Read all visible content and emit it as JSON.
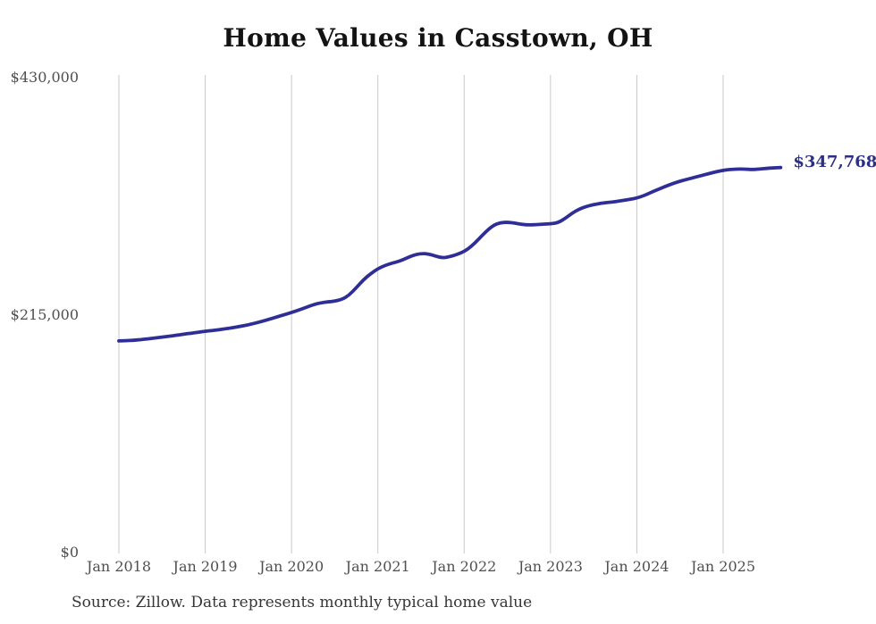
{
  "title": "Home Values in Casstown, OH",
  "end_label": "$347,768",
  "source_note": "Source: Zillow. Data represents monthly typical home value",
  "colors": {
    "line": "#2f2e96",
    "end_label": "#2b2f85",
    "gridline": "#c9c9c9",
    "axis_text": "#4f4f4f",
    "title_text": "#131313",
    "source_text": "#363636",
    "background": "#ffffff"
  },
  "chart_data": {
    "type": "line",
    "title": "Home Values in Casstown, OH",
    "xlabel": "",
    "ylabel": "",
    "ylim": [
      0,
      430000
    ],
    "grid": "vertical-only",
    "legend": "none",
    "frequency": "monthly",
    "x_start": "Jan 2018",
    "x_end": "Sep 2025",
    "x_tick_labels": [
      "Jan 2018",
      "Jan 2019",
      "Jan 2020",
      "Jan 2021",
      "Jan 2022",
      "Jan 2023",
      "Jan 2024",
      "Jan 2025"
    ],
    "y_ticks": [
      {
        "label": "$430,000",
        "value": 430000
      },
      {
        "label": "$215,000",
        "value": 215000
      },
      {
        "label": "$0",
        "value": 0
      }
    ],
    "final_value": 347768,
    "series": [
      {
        "name": "Monthly typical home value",
        "values": [
          190800,
          191000,
          191400,
          192000,
          192700,
          193500,
          194300,
          195100,
          196000,
          196900,
          197800,
          198700,
          199600,
          200300,
          201100,
          202000,
          203000,
          204200,
          205500,
          207000,
          208700,
          210600,
          212600,
          214600,
          216600,
          218700,
          221100,
          223600,
          225300,
          226200,
          226800,
          228400,
          232200,
          239000,
          246200,
          251700,
          256200,
          259200,
          261300,
          263000,
          265800,
          268600,
          270000,
          269700,
          267600,
          266000,
          267100,
          269100,
          271800,
          276400,
          282900,
          289600,
          295300,
          297900,
          298300,
          297500,
          296400,
          295800,
          296100,
          296500,
          296900,
          297800,
          301500,
          306500,
          310200,
          312600,
          314300,
          315400,
          316200,
          316900,
          317900,
          319000,
          320200,
          322400,
          325300,
          328100,
          330800,
          333300,
          335400,
          337200,
          338900,
          340500,
          342300,
          344000,
          345300,
          346100,
          346500,
          346300,
          346000,
          346400,
          347100,
          347500,
          347768
        ]
      }
    ]
  }
}
